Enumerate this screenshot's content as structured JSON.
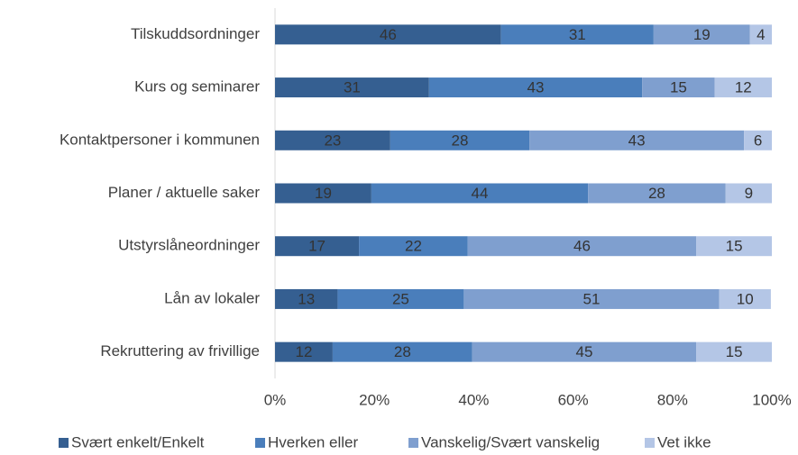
{
  "chart_data": {
    "type": "stacked_bar_horizontal",
    "categories": [
      "Tilskuddsordninger",
      "Kurs og seminarer",
      "Kontaktpersoner i kommunen",
      "Planer / aktuelle saker",
      "Utstyrslåneordninger",
      "Lån av lokaler",
      "Rekruttering av frivillige"
    ],
    "series": [
      {
        "name": "Svært enkelt/Enkelt",
        "color": "#355f91",
        "values": [
          45.5,
          31.0,
          23.2,
          19.4,
          16.9,
          12.6,
          11.6
        ],
        "value_labels": [
          "46",
          "31",
          "23",
          "19",
          "17",
          "13",
          "12"
        ]
      },
      {
        "name": "Hverken eller",
        "color": "#4a7ebb",
        "values": [
          30.7,
          42.9,
          28.0,
          43.6,
          21.9,
          25.4,
          28.1
        ],
        "value_labels": [
          "31",
          "43",
          "28",
          "44",
          "22",
          "25",
          "28"
        ]
      },
      {
        "name": "Vanskelig/Svært vanskelig",
        "color": "#7f9fcf",
        "values": [
          19.4,
          14.6,
          43.2,
          27.7,
          46.0,
          51.4,
          45.1
        ],
        "value_labels": [
          "19",
          "15",
          "43",
          "28",
          "46",
          "51",
          "45"
        ]
      },
      {
        "name": "Vet ikke",
        "color": "#b4c6e6",
        "values": [
          4.4,
          11.5,
          5.6,
          9.3,
          15.2,
          10.4,
          15.2
        ],
        "value_labels": [
          "4",
          "12",
          "6",
          "9",
          "15",
          "10",
          "15"
        ]
      }
    ],
    "xlim": [
      0,
      100
    ],
    "xticks": [
      {
        "value": 0,
        "label": "0%"
      },
      {
        "value": 20,
        "label": "20%"
      },
      {
        "value": 40,
        "label": "40%"
      },
      {
        "value": 60,
        "label": "60%"
      },
      {
        "value": 80,
        "label": "80%"
      },
      {
        "value": 100,
        "label": "100%"
      }
    ],
    "grid": false,
    "legend": "bottom"
  }
}
